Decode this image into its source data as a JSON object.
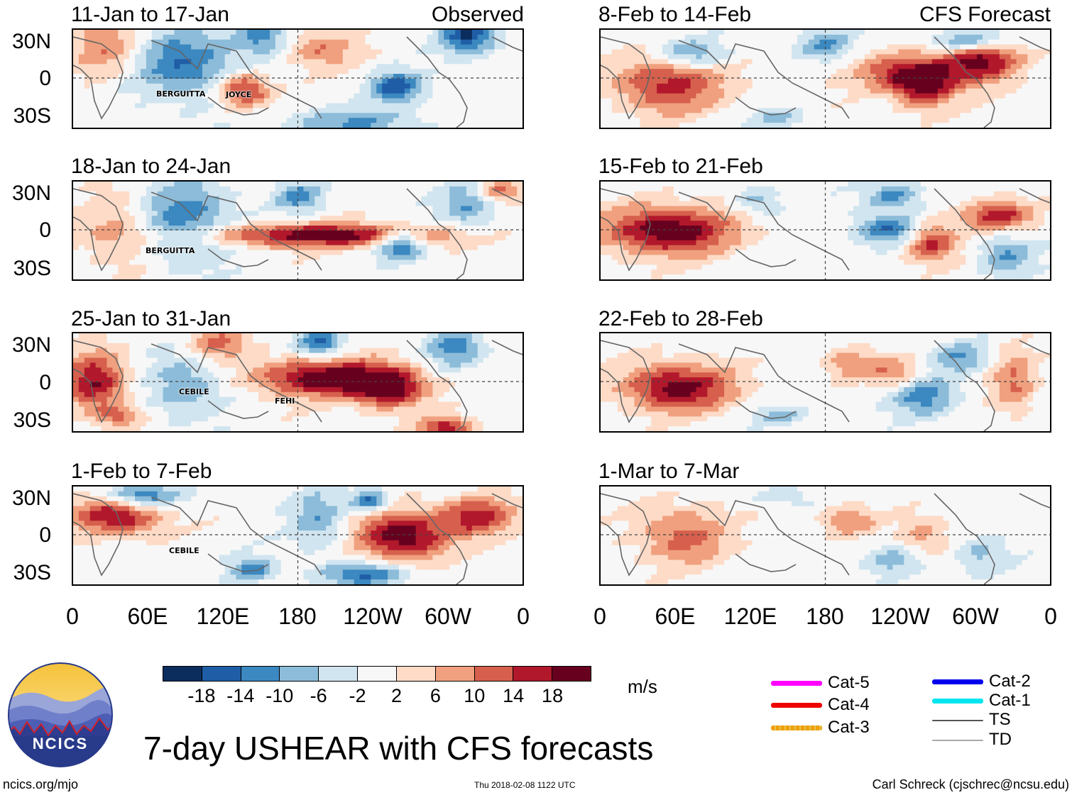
{
  "chart_data": {
    "type": "heatmap",
    "title": "7-day USHEAR with CFS forecasts",
    "variable": "USHEAR",
    "units": "m/s",
    "colorbar": {
      "ticks": [
        "-18",
        "-14",
        "-10",
        "-6",
        "-2",
        "2",
        "6",
        "10",
        "14",
        "18"
      ],
      "colors": [
        "#0b2d5e",
        "#1f5ea6",
        "#3c88c0",
        "#8cbcd9",
        "#d1e5f0",
        "#f7f7f7",
        "#fddbc7",
        "#f0a07e",
        "#d6604d",
        "#b2182b",
        "#67001f"
      ]
    },
    "lat_ticks": [
      "30N",
      "0",
      "30S"
    ],
    "lon_ticks": [
      "0",
      "60E",
      "120E",
      "180",
      "120W",
      "60W",
      "0"
    ],
    "observed": {
      "label": "Observed",
      "panels": [
        {
          "period": "11-Jan to 17-Jan",
          "storms": [
            "BERGUITTA",
            "JOYCE"
          ]
        },
        {
          "period": "18-Jan to 24-Jan",
          "storms": [
            "BERGUITTA"
          ]
        },
        {
          "period": "25-Jan to 31-Jan",
          "storms": [
            "CEBILE",
            "FEHI"
          ]
        },
        {
          "period": "1-Feb to 7-Feb",
          "storms": [
            "CEBILE"
          ]
        }
      ]
    },
    "forecast": {
      "label": "CFS Forecast",
      "panels": [
        {
          "period": "8-Feb to 14-Feb"
        },
        {
          "period": "15-Feb to 21-Feb"
        },
        {
          "period": "22-Feb to 28-Feb"
        },
        {
          "period": "1-Mar to 7-Mar"
        }
      ]
    }
  },
  "legend": [
    {
      "label": "Cat-5",
      "color": "#ff00ff"
    },
    {
      "label": "Cat-4",
      "color": "#ee0000"
    },
    {
      "label": "Cat-3",
      "color": "#f0a000"
    },
    {
      "label": "Cat-2",
      "color": "#0000ee"
    },
    {
      "label": "Cat-1",
      "color": "#00e5ee"
    },
    {
      "label": "TS",
      "color": "#555555"
    },
    {
      "label": "TD",
      "color": "#aaaaaa"
    }
  ],
  "footer": {
    "left": "ncics.org/mjo",
    "center": "Thu 2018-02-08 1122 UTC",
    "right": "Carl Schreck (cjschrec@ncsu.edu)"
  },
  "logo_text": "NCICS"
}
